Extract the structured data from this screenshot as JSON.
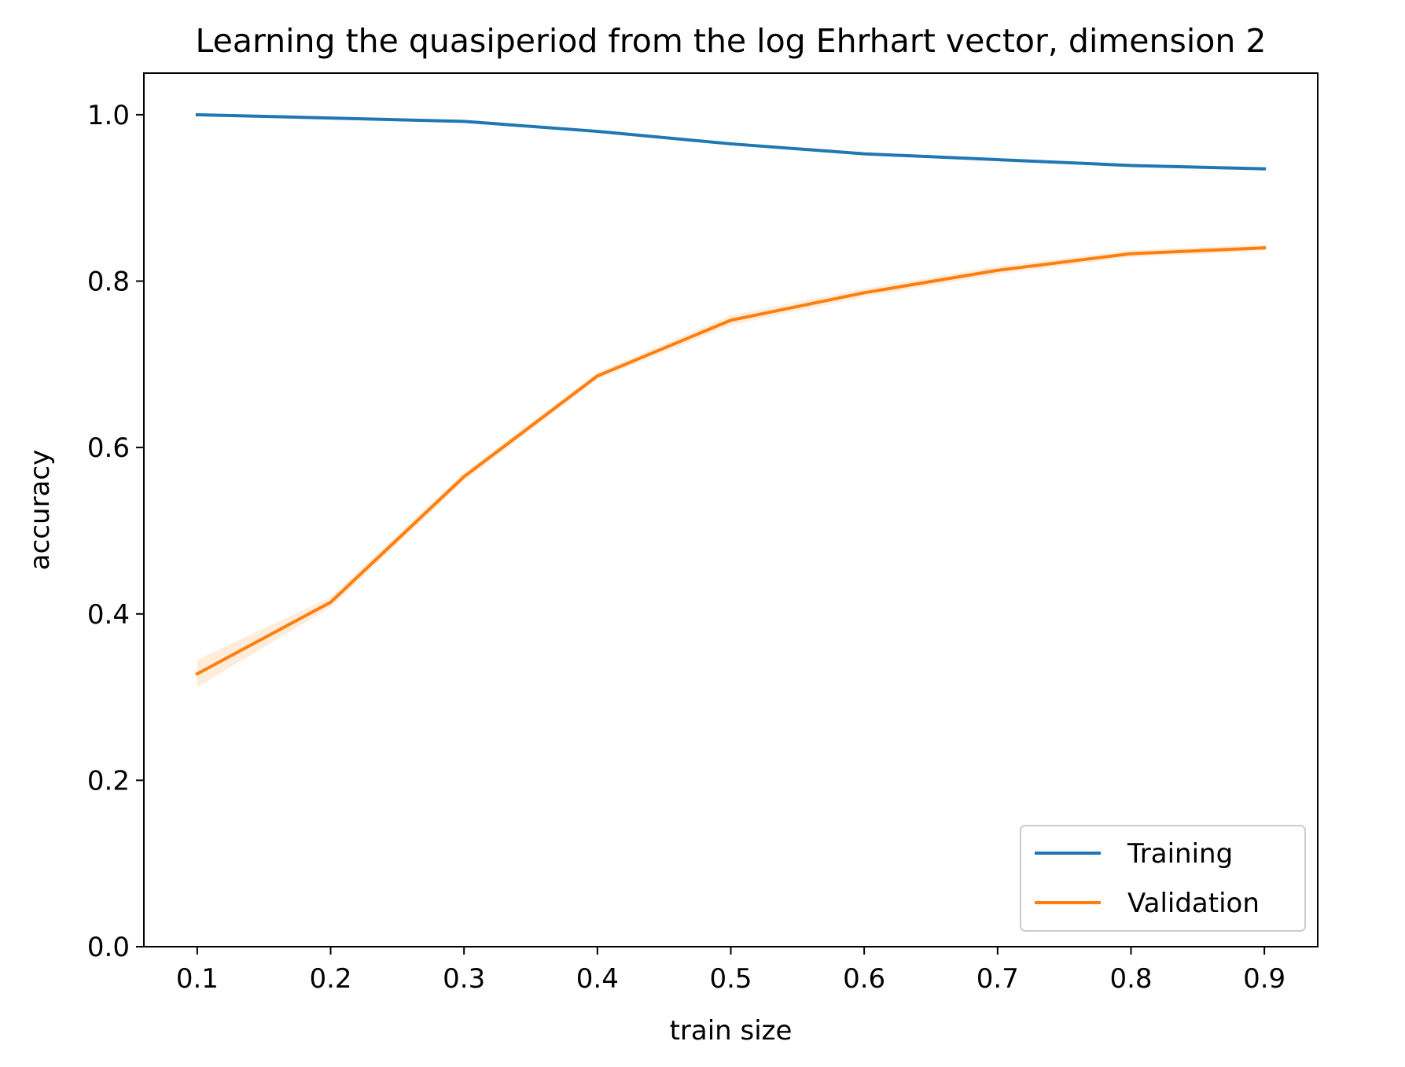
{
  "chart_data": {
    "type": "line",
    "title": "Learning the quasiperiod from the log Ehrhart vector, dimension 2",
    "xlabel": "train size",
    "ylabel": "accuracy",
    "xlim": [
      0.06,
      0.94
    ],
    "ylim": [
      0.0,
      1.05
    ],
    "xticks": [
      0.1,
      0.2,
      0.3,
      0.4,
      0.5,
      0.6,
      0.7,
      0.8,
      0.9
    ],
    "xtick_labels": [
      "0.1",
      "0.2",
      "0.3",
      "0.4",
      "0.5",
      "0.6",
      "0.7",
      "0.8",
      "0.9"
    ],
    "yticks": [
      0.0,
      0.2,
      0.4,
      0.6,
      0.8,
      1.0
    ],
    "ytick_labels": [
      "0.0",
      "0.2",
      "0.4",
      "0.6",
      "0.8",
      "1.0"
    ],
    "grid": false,
    "legend_position": "lower-right",
    "x": [
      0.1,
      0.2,
      0.3,
      0.4,
      0.5,
      0.6,
      0.7,
      0.8,
      0.9
    ],
    "series": [
      {
        "name": "Training",
        "color": "#1f77b4",
        "values": [
          1.0,
          0.996,
          0.992,
          0.98,
          0.965,
          0.953,
          0.946,
          0.939,
          0.935
        ],
        "band_lower": [
          0.999,
          0.995,
          0.991,
          0.979,
          0.964,
          0.952,
          0.945,
          0.938,
          0.934
        ],
        "band_upper": [
          1.0,
          0.997,
          0.993,
          0.981,
          0.966,
          0.954,
          0.947,
          0.94,
          0.936
        ]
      },
      {
        "name": "Validation",
        "color": "#ff7f0e",
        "values": [
          0.328,
          0.414,
          0.565,
          0.686,
          0.753,
          0.786,
          0.813,
          0.833,
          0.84
        ],
        "band_lower": [
          0.312,
          0.408,
          0.56,
          0.682,
          0.747,
          0.781,
          0.808,
          0.829,
          0.836
        ],
        "band_upper": [
          0.345,
          0.42,
          0.57,
          0.69,
          0.759,
          0.791,
          0.818,
          0.837,
          0.844
        ]
      }
    ]
  }
}
